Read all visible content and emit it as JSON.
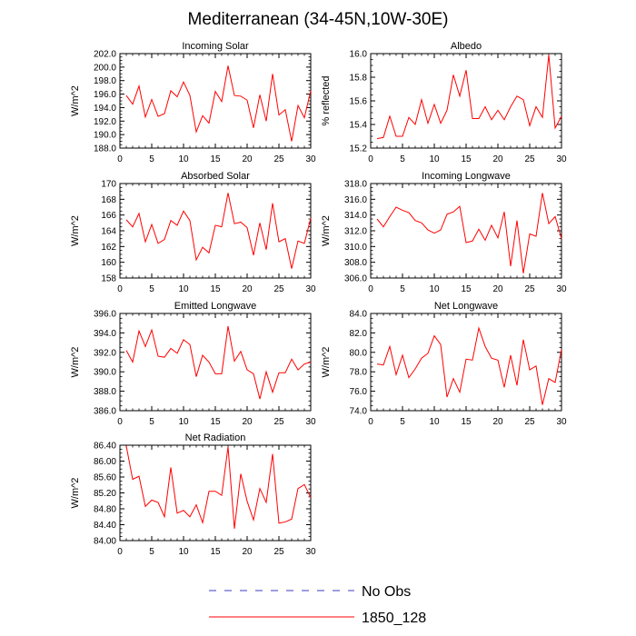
{
  "title": "Mediterranean (34-45N,10W-30E)",
  "legend": {
    "entries": [
      {
        "label": "No Obs",
        "color": "#3b3bbf",
        "style": "dashed"
      },
      {
        "label": "1850_128",
        "color": "#ff0000",
        "style": "solid"
      }
    ]
  },
  "chart_data": [
    {
      "type": "line",
      "title": "Incoming Solar",
      "ylabel": "W/m^2",
      "xlim": [
        0,
        30
      ],
      "ylim": [
        188,
        202
      ],
      "xticks": [
        0,
        5,
        10,
        15,
        20,
        25,
        30
      ],
      "yticks": [
        "188.0",
        "190.0",
        "192.0",
        "194.0",
        "196.0",
        "198.0",
        "200.0",
        "202.0"
      ],
      "grid": false,
      "series": [
        {
          "name": "1850_128",
          "color": "#ff0000",
          "x": [
            1,
            2,
            3,
            4,
            5,
            6,
            7,
            8,
            9,
            10,
            11,
            12,
            13,
            14,
            15,
            16,
            17,
            18,
            19,
            20,
            21,
            22,
            23,
            24,
            25,
            26,
            27,
            28,
            29,
            30
          ],
          "values": [
            195.8,
            194.5,
            197.2,
            192.6,
            195.2,
            192.7,
            193.1,
            196.5,
            195.6,
            197.8,
            195.8,
            190.4,
            192.8,
            191.7,
            196.4,
            194.9,
            200.2,
            195.8,
            195.7,
            195.1,
            191.0,
            195.9,
            192.0,
            199.0,
            192.9,
            193.7,
            189.0,
            194.3,
            192.5,
            196.5
          ]
        }
      ]
    },
    {
      "type": "line",
      "title": "Albedo",
      "ylabel": "% reflected",
      "xlim": [
        0,
        30
      ],
      "ylim": [
        15.2,
        16.0
      ],
      "xticks": [
        0,
        5,
        10,
        15,
        20,
        25,
        30
      ],
      "yticks": [
        "15.2",
        "15.4",
        "15.6",
        "15.8",
        "16.0"
      ],
      "grid": false,
      "series": [
        {
          "name": "1850_128",
          "color": "#ff0000",
          "x": [
            1,
            2,
            3,
            4,
            5,
            6,
            7,
            8,
            9,
            10,
            11,
            12,
            13,
            14,
            15,
            16,
            17,
            18,
            19,
            20,
            21,
            22,
            23,
            24,
            25,
            26,
            27,
            28,
            29,
            30
          ],
          "values": [
            15.28,
            15.29,
            15.47,
            15.3,
            15.3,
            15.46,
            15.4,
            15.61,
            15.41,
            15.57,
            15.41,
            15.52,
            15.82,
            15.64,
            15.86,
            15.45,
            15.45,
            15.55,
            15.44,
            15.52,
            15.44,
            15.55,
            15.64,
            15.61,
            15.39,
            15.55,
            15.46,
            15.99,
            15.37,
            15.47
          ]
        }
      ]
    },
    {
      "type": "line",
      "title": "Absorbed Solar",
      "ylabel": "W/m^2",
      "xlim": [
        0,
        30
      ],
      "ylim": [
        158,
        170
      ],
      "xticks": [
        0,
        5,
        10,
        15,
        20,
        25,
        30
      ],
      "yticks": [
        "158",
        "160",
        "162",
        "164",
        "166",
        "168",
        "170"
      ],
      "grid": false,
      "series": [
        {
          "name": "1850_128",
          "color": "#ff0000",
          "x": [
            1,
            2,
            3,
            4,
            5,
            6,
            7,
            8,
            9,
            10,
            11,
            12,
            13,
            14,
            15,
            16,
            17,
            18,
            19,
            20,
            21,
            22,
            23,
            24,
            25,
            26,
            27,
            28,
            29,
            30
          ],
          "values": [
            165.4,
            164.5,
            166.2,
            162.6,
            164.8,
            162.4,
            162.9,
            165.3,
            164.7,
            166.5,
            165.3,
            160.3,
            161.9,
            161.2,
            164.7,
            164.5,
            168.8,
            164.9,
            165.1,
            164.4,
            160.9,
            165.0,
            161.6,
            167.5,
            162.6,
            163.0,
            159.2,
            162.7,
            162.4,
            165.6
          ]
        }
      ]
    },
    {
      "type": "line",
      "title": "Incoming Longwave",
      "ylabel": "W/m^2",
      "xlim": [
        0,
        30
      ],
      "ylim": [
        306,
        318
      ],
      "xticks": [
        0,
        5,
        10,
        15,
        20,
        25,
        30
      ],
      "yticks": [
        "306.0",
        "308.0",
        "310.0",
        "312.0",
        "314.0",
        "316.0",
        "318.0"
      ],
      "grid": false,
      "series": [
        {
          "name": "1850_128",
          "color": "#ff0000",
          "x": [
            1,
            2,
            3,
            4,
            5,
            6,
            7,
            8,
            9,
            10,
            11,
            12,
            13,
            14,
            15,
            16,
            17,
            18,
            19,
            20,
            21,
            22,
            23,
            24,
            25,
            26,
            27,
            28,
            29,
            30
          ],
          "values": [
            313.5,
            312.5,
            313.8,
            315.0,
            314.6,
            314.3,
            313.3,
            313.0,
            312.1,
            311.7,
            312.1,
            314.1,
            314.4,
            315.1,
            310.5,
            310.7,
            312.2,
            310.8,
            312.7,
            311.1,
            314.4,
            307.5,
            313.3,
            306.6,
            311.6,
            311.3,
            316.8,
            312.9,
            313.8,
            311.0
          ]
        }
      ]
    },
    {
      "type": "line",
      "title": "Emitted Longwave",
      "ylabel": "W/m^2",
      "xlim": [
        0,
        30
      ],
      "ylim": [
        386,
        396
      ],
      "xticks": [
        0,
        5,
        10,
        15,
        20,
        25,
        30
      ],
      "yticks": [
        "386.0",
        "388.0",
        "390.0",
        "392.0",
        "394.0",
        "396.0"
      ],
      "grid": false,
      "series": [
        {
          "name": "1850_128",
          "color": "#ff0000",
          "x": [
            1,
            2,
            3,
            4,
            5,
            6,
            7,
            8,
            9,
            10,
            11,
            12,
            13,
            14,
            15,
            16,
            17,
            18,
            19,
            20,
            21,
            22,
            23,
            24,
            25,
            26,
            27,
            28,
            29,
            30
          ],
          "values": [
            392.2,
            391.0,
            394.2,
            392.6,
            394.3,
            391.6,
            391.5,
            392.4,
            391.9,
            393.3,
            392.8,
            389.5,
            391.7,
            391.0,
            389.8,
            389.8,
            394.7,
            391.1,
            392.1,
            390.2,
            389.8,
            387.2,
            390.0,
            387.9,
            389.9,
            389.9,
            391.3,
            390.2,
            390.8,
            391.0
          ]
        }
      ]
    },
    {
      "type": "line",
      "title": "Net Longwave",
      "ylabel": "W/m^2",
      "xlim": [
        0,
        30
      ],
      "ylim": [
        74,
        84
      ],
      "xticks": [
        0,
        5,
        10,
        15,
        20,
        25,
        30
      ],
      "yticks": [
        "74.0",
        "76.0",
        "78.0",
        "80.0",
        "82.0",
        "84.0"
      ],
      "grid": false,
      "series": [
        {
          "name": "1850_128",
          "color": "#ff0000",
          "x": [
            1,
            2,
            3,
            4,
            5,
            6,
            7,
            8,
            9,
            10,
            11,
            12,
            13,
            14,
            15,
            16,
            17,
            18,
            19,
            20,
            21,
            22,
            23,
            24,
            25,
            26,
            27,
            28,
            29,
            30
          ],
          "values": [
            78.8,
            78.7,
            80.6,
            77.7,
            79.7,
            77.4,
            78.3,
            79.4,
            79.9,
            81.7,
            80.8,
            75.4,
            77.3,
            75.9,
            79.3,
            79.2,
            82.5,
            80.6,
            79.4,
            79.2,
            76.4,
            79.7,
            76.6,
            81.3,
            78.2,
            78.6,
            74.6,
            77.3,
            76.9,
            80.3
          ]
        }
      ]
    },
    {
      "type": "line",
      "title": "Net Radiation",
      "ylabel": "W/m^2",
      "xlim": [
        0,
        30
      ],
      "ylim": [
        84.0,
        86.4
      ],
      "xticks": [
        0,
        5,
        10,
        15,
        20,
        25,
        30
      ],
      "yticks": [
        "84.00",
        "84.40",
        "84.80",
        "85.20",
        "85.60",
        "86.00",
        "86.40"
      ],
      "grid": false,
      "series": [
        {
          "name": "1850_128",
          "color": "#ff0000",
          "x": [
            1,
            2,
            3,
            4,
            5,
            6,
            7,
            8,
            9,
            10,
            11,
            12,
            13,
            14,
            15,
            16,
            17,
            18,
            19,
            20,
            21,
            22,
            23,
            24,
            25,
            26,
            27,
            28,
            29,
            30
          ],
          "values": [
            86.38,
            85.54,
            85.62,
            84.86,
            85.02,
            84.96,
            84.6,
            85.84,
            84.69,
            84.76,
            84.6,
            84.9,
            84.45,
            85.24,
            85.24,
            85.14,
            86.36,
            84.3,
            85.68,
            84.99,
            84.52,
            85.31,
            84.96,
            86.18,
            84.44,
            84.47,
            84.54,
            85.31,
            85.41,
            85.08
          ]
        }
      ]
    }
  ]
}
